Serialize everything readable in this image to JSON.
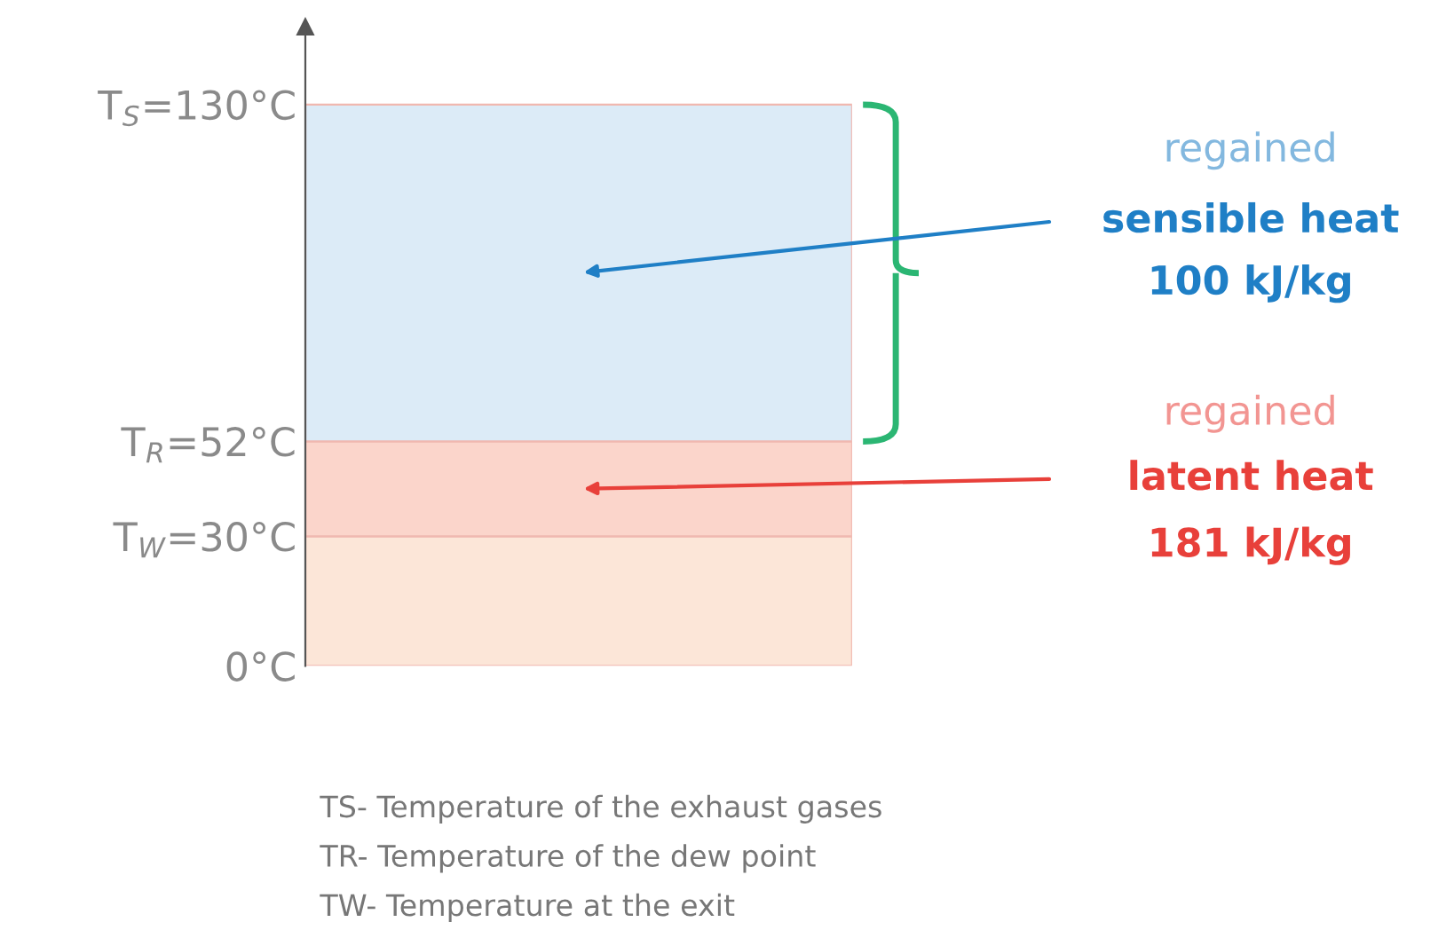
{
  "chart_data": {
    "type": "bar",
    "stacked": true,
    "categories": [
      null
    ],
    "series": [
      {
        "color": "#fce6d8",
        "values": [
          30
        ]
      },
      {
        "color": "#fbd5cb",
        "values": [
          22
        ]
      },
      {
        "color": "#dcebf7",
        "values": [
          78
        ]
      }
    ],
    "ylim": [
      0,
      148
    ],
    "yticks": [
      {
        "value": 0,
        "label": "0°C"
      },
      {
        "value": 30,
        "label": "T$_{W}$=30°C"
      },
      {
        "value": 52,
        "label": "T$_{R}$=52°C"
      },
      {
        "value": 130,
        "label": "T$_{S}$=130°C"
      }
    ],
    "grid": false,
    "legend": false,
    "annotations": [
      "regained",
      "sensible heat",
      "100 kJ/kg",
      "regained",
      "latent heat",
      "181 kJ/kg",
      "TS- Temperature of the exhaust gases",
      "TR- Temperature of the dew point",
      "TW- Temperature at the exit"
    ]
  }
}
